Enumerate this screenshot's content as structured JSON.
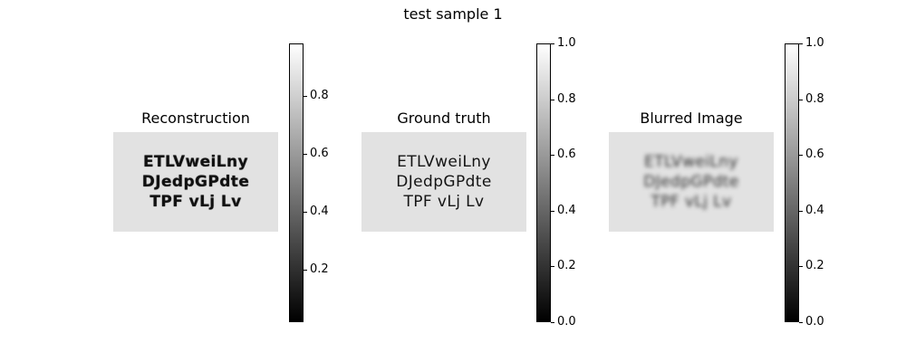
{
  "figure": {
    "title": "test sample 1"
  },
  "panels": [
    {
      "id": "reconstruction",
      "title": "Reconstruction",
      "text_lines": [
        "ETLVweiLny",
        "DJedpGPdte",
        "TPF vLj Lv"
      ],
      "colorbar": {
        "min": 0.02,
        "max": 0.98,
        "ticks": [
          "0.2",
          "0.4",
          "0.6",
          "0.8"
        ],
        "tick_values": [
          0.2,
          0.4,
          0.6,
          0.8
        ]
      }
    },
    {
      "id": "ground_truth",
      "title": "Ground truth",
      "text_lines": [
        "ETLVweiLny",
        "DJedpGPdte",
        "TPF vLj Lv"
      ],
      "colorbar": {
        "min": 0.0,
        "max": 1.0,
        "ticks": [
          "0.0",
          "0.2",
          "0.4",
          "0.6",
          "0.8",
          "1.0"
        ],
        "tick_values": [
          0.0,
          0.2,
          0.4,
          0.6,
          0.8,
          1.0
        ]
      }
    },
    {
      "id": "blurred",
      "title": "Blurred Image",
      "text_lines": [
        "ETLVweiLny",
        "DJedpGPdte",
        "TPF vLj Lv"
      ],
      "colorbar": {
        "min": 0.0,
        "max": 1.0,
        "ticks": [
          "0.0",
          "0.2",
          "0.4",
          "0.6",
          "0.8",
          "1.0"
        ],
        "tick_values": [
          0.0,
          0.2,
          0.4,
          0.6,
          0.8,
          1.0
        ]
      }
    }
  ],
  "colormap": "gray"
}
